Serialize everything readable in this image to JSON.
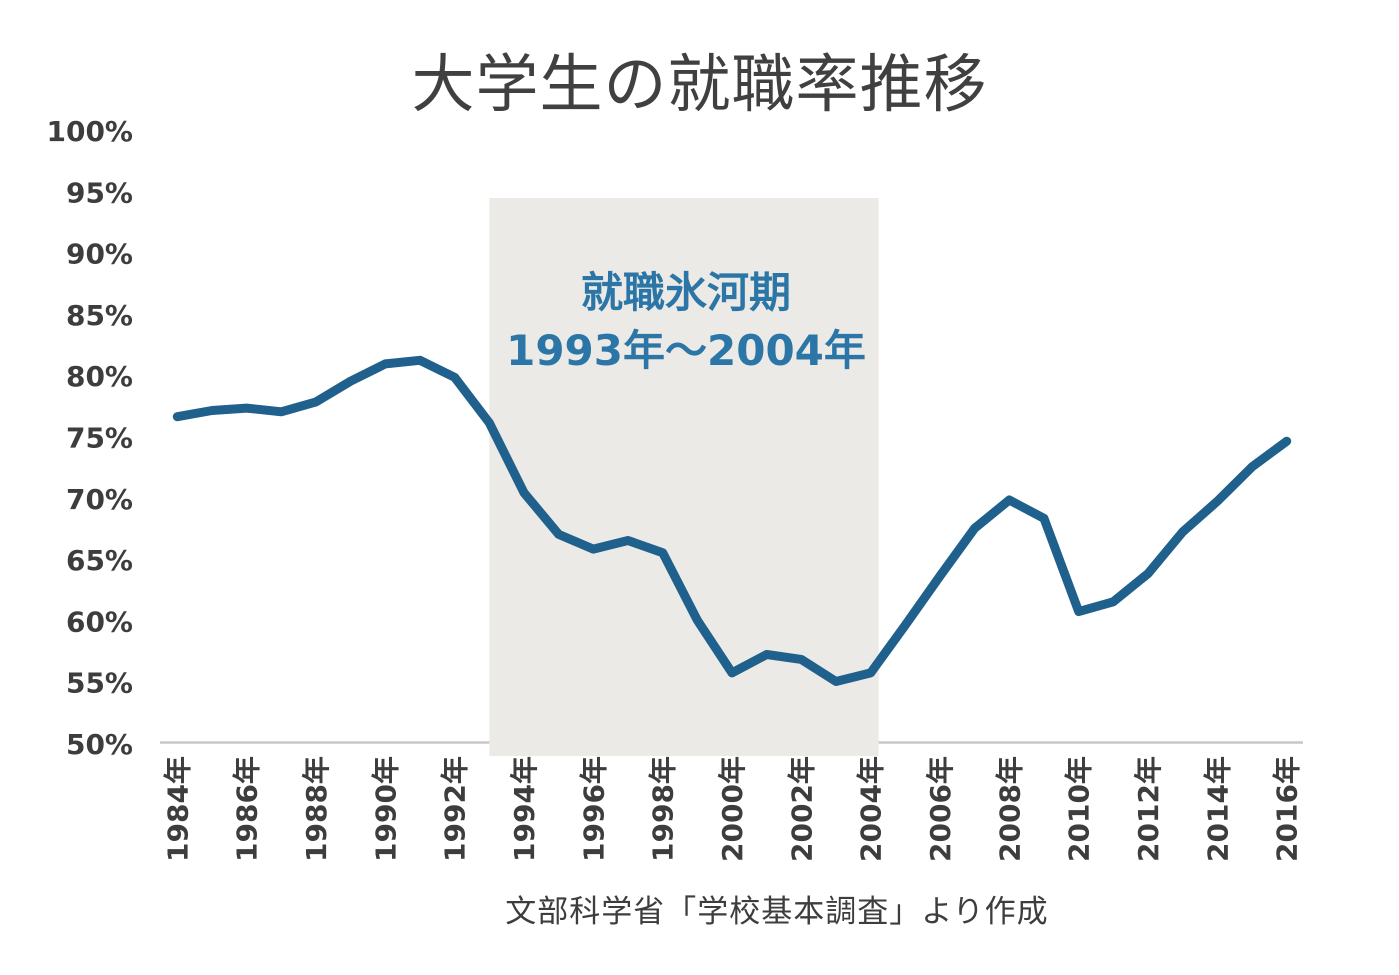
{
  "chart_data": {
    "type": "line",
    "title": "大学生の就職率推移",
    "source": "文部科学省「学校基本調査」より作成",
    "xlabel": "",
    "ylabel": "",
    "ylim": [
      50,
      100
    ],
    "grid": false,
    "legend": "none",
    "years": [
      1984,
      1985,
      1986,
      1987,
      1988,
      1989,
      1990,
      1991,
      1992,
      1993,
      1994,
      1995,
      1996,
      1997,
      1998,
      1999,
      2000,
      2001,
      2002,
      2003,
      2004,
      2005,
      2006,
      2007,
      2008,
      2009,
      2010,
      2011,
      2012,
      2013,
      2014,
      2015,
      2016
    ],
    "values": [
      76.7,
      77.2,
      77.4,
      77.1,
      77.9,
      79.6,
      81.0,
      81.3,
      79.9,
      76.2,
      70.5,
      67.1,
      65.9,
      66.6,
      65.6,
      60.1,
      55.8,
      57.3,
      56.9,
      55.1,
      55.8,
      59.7,
      63.7,
      67.6,
      69.9,
      68.4,
      60.8,
      61.6,
      63.9,
      67.3,
      69.8,
      72.6,
      74.7
    ],
    "y_ticks": [
      {
        "value": 100,
        "label": "100%"
      },
      {
        "value": 95,
        "label": "95%"
      },
      {
        "value": 90,
        "label": "90%"
      },
      {
        "value": 85,
        "label": "85%"
      },
      {
        "value": 80,
        "label": "80%"
      },
      {
        "value": 75,
        "label": "75%"
      },
      {
        "value": 70,
        "label": "70%"
      },
      {
        "value": 65,
        "label": "65%"
      },
      {
        "value": 60,
        "label": "60%"
      },
      {
        "value": 55,
        "label": "55%"
      },
      {
        "value": 50,
        "label": "50%"
      }
    ],
    "x_ticks": [
      {
        "year": 1984,
        "label": "1984年"
      },
      {
        "year": 1986,
        "label": "1986年"
      },
      {
        "year": 1988,
        "label": "1988年"
      },
      {
        "year": 1990,
        "label": "1990年"
      },
      {
        "year": 1992,
        "label": "1992年"
      },
      {
        "year": 1994,
        "label": "1994年"
      },
      {
        "year": 1996,
        "label": "1996年"
      },
      {
        "year": 1998,
        "label": "1998年"
      },
      {
        "year": 2000,
        "label": "2000年"
      },
      {
        "year": 2002,
        "label": "2002年"
      },
      {
        "year": 2004,
        "label": "2004年"
      },
      {
        "year": 2006,
        "label": "2006年"
      },
      {
        "year": 2008,
        "label": "2008年"
      },
      {
        "year": 2010,
        "label": "2010年"
      },
      {
        "year": 2012,
        "label": "2012年"
      },
      {
        "year": 2014,
        "label": "2014年"
      },
      {
        "year": 2016,
        "label": "2016年"
      }
    ],
    "annotation": {
      "line1": "就職氷河期",
      "line2": "1993年〜2004年",
      "band_from_year": 1993,
      "band_to_year": 2004
    },
    "colors": {
      "line": "#1F608C",
      "band": "#ECEAE6",
      "annotation_text": "#2B76A6",
      "axis_line": "#C9C7C5",
      "tick_text": "#3D3D3D",
      "title_text": "#404040"
    }
  }
}
